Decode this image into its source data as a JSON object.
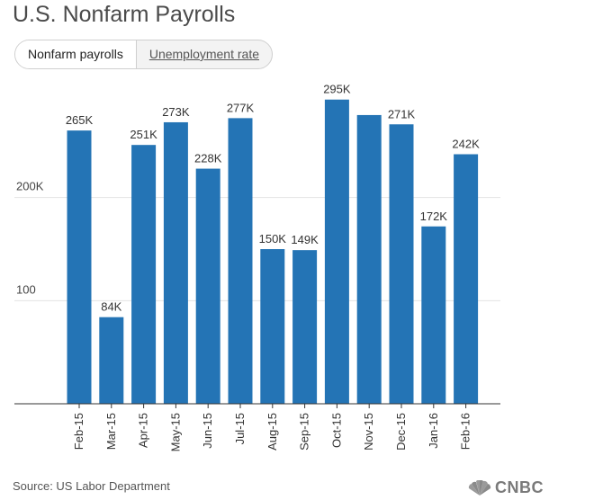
{
  "title": "U.S. Nonfarm Payrolls",
  "tabs": [
    {
      "label": "Nonfarm payrolls"
    },
    {
      "label": "Unemployment rate"
    }
  ],
  "source": "Source: US Labor Department",
  "logo_text": "CNBC",
  "colors": {
    "bar": "#2474b5",
    "grid": "#e3e3e3",
    "axis": "#333333"
  },
  "chart_data": {
    "type": "bar",
    "title": "U.S. Nonfarm Payrolls",
    "xlabel": "",
    "ylabel": "",
    "categories": [
      "Feb-15",
      "Mar-15",
      "Apr-15",
      "May-15",
      "Jun-15",
      "Jul-15",
      "Aug-15",
      "Sep-15",
      "Oct-15",
      "Nov-15",
      "Dec-15",
      "Jan-16",
      "Feb-16"
    ],
    "values": [
      265,
      84,
      251,
      273,
      228,
      277,
      150,
      149,
      295,
      280,
      271,
      172,
      242
    ],
    "data_labels": [
      "265K",
      "84K",
      "251K",
      "273K",
      "228K",
      "277K",
      "150K",
      "149K",
      "295K",
      "",
      "271K",
      "172K",
      "242K"
    ],
    "y_ticks": [
      {
        "value": 100,
        "label": "100"
      },
      {
        "value": 200,
        "label": "200K"
      }
    ],
    "ylim": [
      0,
      300
    ],
    "grid": true,
    "legend": "none"
  }
}
